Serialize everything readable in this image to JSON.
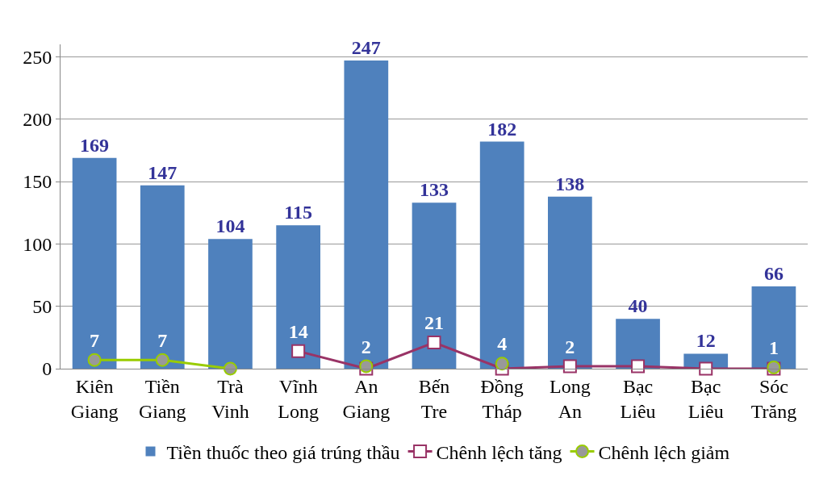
{
  "chart_data": {
    "type": "bar",
    "categories": [
      "Kiên Giang",
      "Tiền Giang",
      "Trà Vinh",
      "Vĩnh Long",
      "An Giang",
      "Bến Tre",
      "Đồng Tháp",
      "Long An",
      "Bạc Liêu",
      "Bạc Liêu",
      "Sóc Trăng"
    ],
    "series": [
      {
        "name": "Tiền thuốc theo giá trúng thầu",
        "color": "#4f81bd",
        "values": [
          169,
          147,
          104,
          115,
          247,
          133,
          182,
          138,
          40,
          12,
          66
        ],
        "data_labels": true
      },
      {
        "name": "Chênh lệch tăng",
        "type": "line",
        "color": "#993366",
        "marker": "square",
        "values": [
          null,
          null,
          null,
          14,
          0,
          21,
          0,
          2,
          2,
          0,
          0
        ],
        "value_labels": [
          null,
          null,
          null,
          "14",
          null,
          "21",
          null,
          "2",
          null,
          null,
          null
        ]
      },
      {
        "name": "Chênh lệch giảm",
        "type": "line",
        "color": "#99cc00",
        "marker": "circle",
        "values": [
          7,
          7,
          0,
          null,
          2,
          null,
          4,
          null,
          null,
          null,
          1
        ],
        "value_labels": [
          "7",
          "7",
          null,
          null,
          "2",
          null,
          "4",
          null,
          null,
          null,
          "1"
        ]
      }
    ],
    "ylim": [
      0,
      260
    ],
    "yticks": [
      0,
      50,
      100,
      150,
      200,
      250
    ],
    "grid": "y",
    "legend": "bottom"
  }
}
